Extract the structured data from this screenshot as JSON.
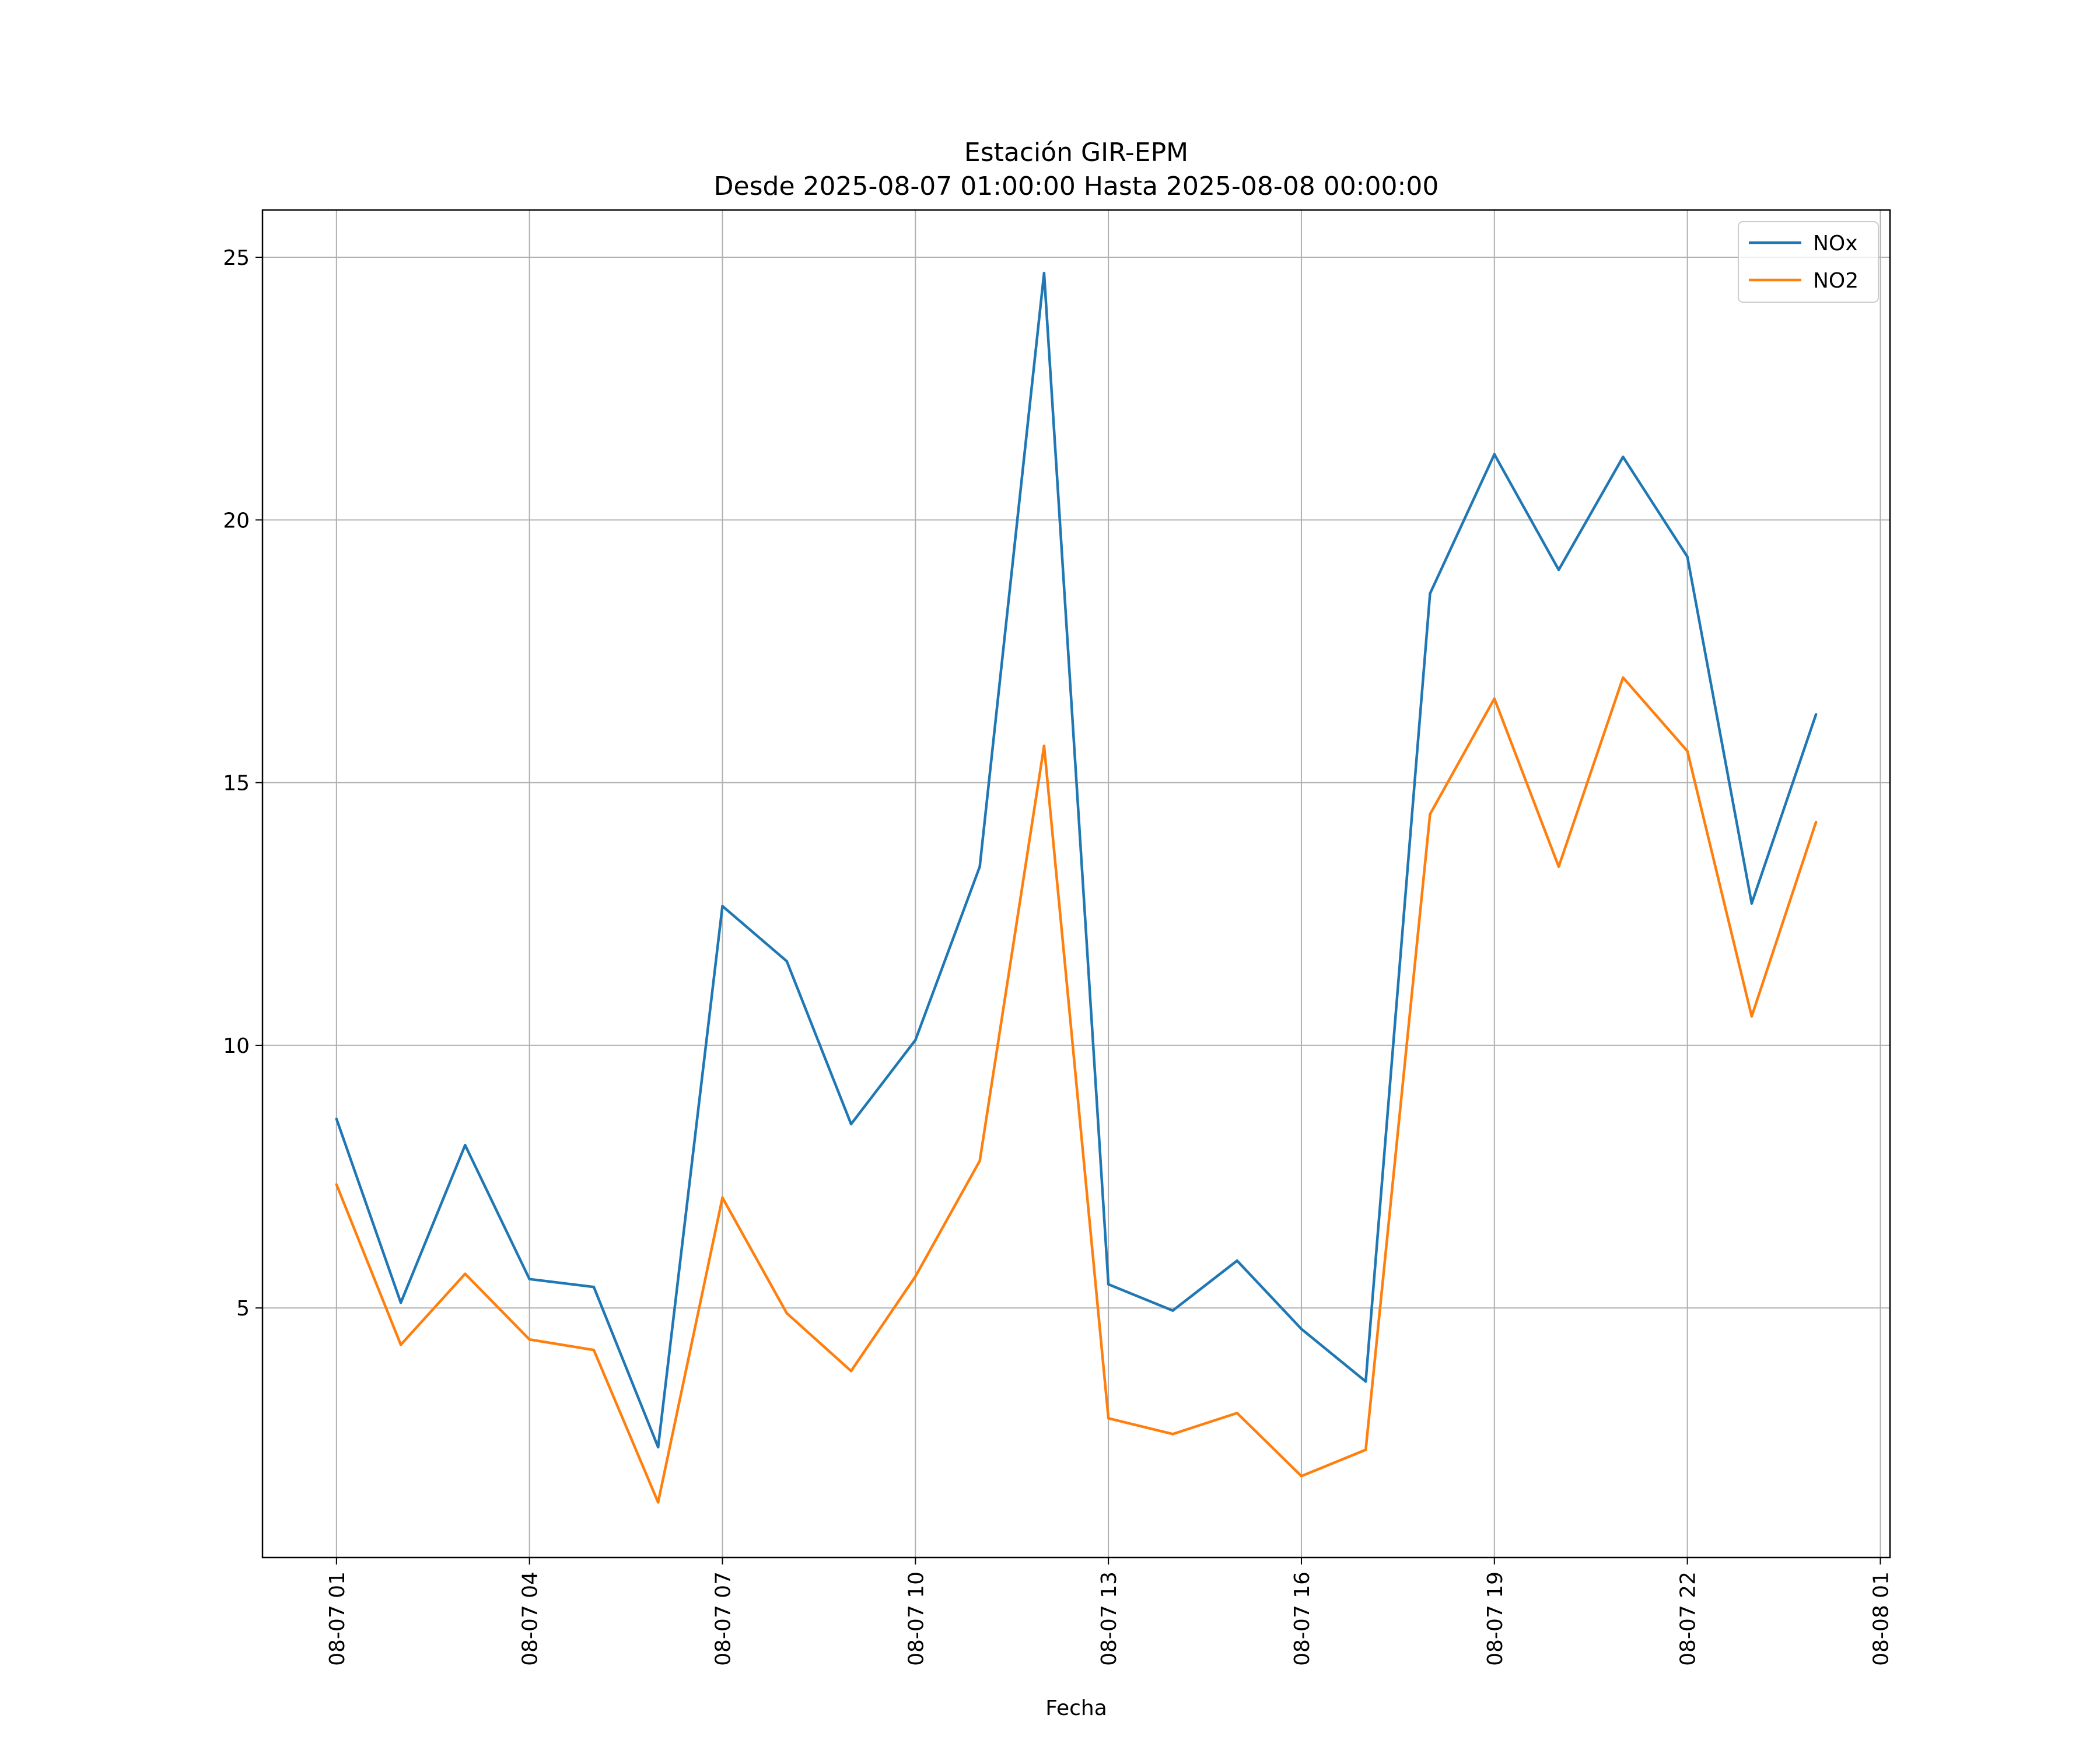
{
  "chart_data": {
    "type": "line",
    "title": "Estación GIR-EPM",
    "subtitle": "Desde 2025-08-07 01:00:00 Hasta 2025-08-08 00:00:00",
    "xlabel": "Fecha",
    "ylabel": "",
    "x_hours": [
      1,
      2,
      3,
      4,
      5,
      6,
      7,
      8,
      9,
      10,
      11,
      12,
      13,
      14,
      15,
      16,
      17,
      18,
      19,
      20,
      21,
      22,
      23,
      24
    ],
    "x_tick_positions_hours": [
      1,
      4,
      7,
      10,
      13,
      16,
      19,
      22,
      25
    ],
    "x_tick_labels": [
      "08-07 01",
      "08-07 04",
      "08-07 07",
      "08-07 10",
      "08-07 13",
      "08-07 16",
      "08-07 19",
      "08-07 22",
      "08-08 01"
    ],
    "xlim": [
      -0.15,
      25.15
    ],
    "ylim": [
      0.25,
      25.9
    ],
    "y_ticks": [
      5,
      10,
      15,
      20,
      25
    ],
    "y_tick_labels": [
      "5",
      "10",
      "15",
      "20",
      "25"
    ],
    "grid": true,
    "legend_position": "top-right",
    "series": [
      {
        "name": "NOx",
        "color": "#1f77b4",
        "values": [
          8.6,
          5.1,
          8.1,
          5.55,
          5.4,
          2.35,
          12.65,
          11.6,
          8.5,
          10.1,
          13.4,
          24.7,
          5.45,
          4.95,
          5.9,
          4.6,
          3.6,
          18.6,
          21.25,
          19.05,
          21.2,
          19.3,
          12.7,
          16.3
        ]
      },
      {
        "name": "NO2",
        "color": "#ff7f0e",
        "values": [
          7.35,
          4.3,
          5.65,
          4.4,
          4.2,
          1.3,
          7.1,
          4.9,
          3.8,
          5.6,
          7.8,
          15.7,
          2.9,
          2.6,
          3.0,
          1.8,
          2.3,
          14.4,
          16.6,
          13.4,
          17.0,
          15.6,
          10.55,
          14.25
        ]
      }
    ]
  }
}
